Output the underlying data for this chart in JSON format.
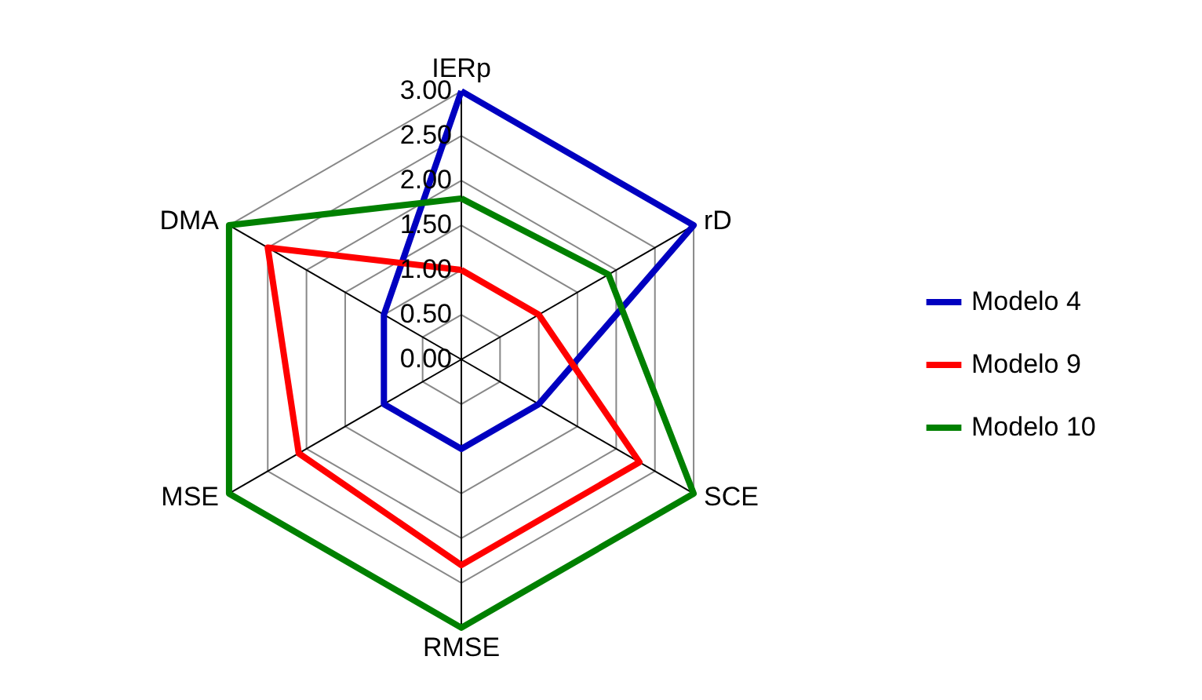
{
  "chart_data": {
    "type": "radar",
    "categories": [
      "IERp",
      "rD",
      "SCE",
      "RMSE",
      "MSE",
      "DMA"
    ],
    "series": [
      {
        "name": "Modelo 4",
        "color": "#0000c0",
        "values": [
          3.0,
          3.0,
          1.0,
          1.0,
          1.0,
          1.0
        ]
      },
      {
        "name": "Modelo 9",
        "color": "#ff0000",
        "values": [
          1.0,
          1.0,
          2.3,
          2.3,
          2.1,
          2.5
        ]
      },
      {
        "name": "Modelo 10",
        "color": "#008000",
        "values": [
          1.8,
          1.9,
          3.0,
          3.0,
          3.0,
          3.0
        ]
      }
    ],
    "ylim": [
      0,
      3
    ],
    "yticks": [
      {
        "value": 0,
        "label": "0.00"
      },
      {
        "value": 0.5,
        "label": "0.50"
      },
      {
        "value": 1,
        "label": "1.00"
      },
      {
        "value": 1.5,
        "label": "1.50"
      },
      {
        "value": 2,
        "label": "2.00"
      },
      {
        "value": 2.5,
        "label": "2.50"
      },
      {
        "value": 3,
        "label": "3.00"
      }
    ],
    "grid": true,
    "legend": "right",
    "marker": "none",
    "line_style": "solid"
  }
}
